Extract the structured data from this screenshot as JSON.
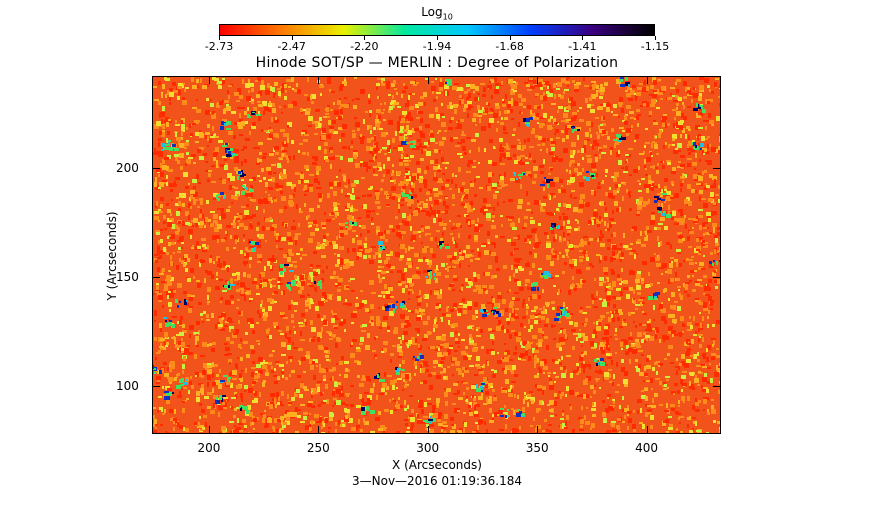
{
  "colorbar": {
    "title": "Log",
    "title_subscript": "10",
    "tick_labels": [
      "-2.73",
      "-2.47",
      "-2.20",
      "-1.94",
      "-1.68",
      "-1.41",
      "-1.15"
    ],
    "colors": [
      "#ff0000",
      "#ff7a00",
      "#e8f000",
      "#00e8a0",
      "#00c8ff",
      "#0040ff",
      "#3a0080",
      "#000000"
    ]
  },
  "plot": {
    "title": "Hinode SOT/SP — MERLIN : Degree of Polarization",
    "xlabel": "X (Arcseconds)",
    "ylabel": "Y (Arcseconds)",
    "x_ticks": [
      200,
      250,
      300,
      350,
      400
    ],
    "y_ticks": [
      100,
      150,
      200
    ],
    "xlim": [
      174,
      434
    ],
    "ylim": [
      78,
      242
    ],
    "background_color": "#f1531b",
    "speckle_colors": [
      "#ff2a00",
      "#ff8c1a",
      "#ffb020",
      "#f0e030",
      "#c8f040"
    ],
    "patch_colors": [
      "#40e060",
      "#20c0e0",
      "#1030c0",
      "#000060"
    ]
  },
  "footer": {
    "timestamp": "3—Nov—2016 01:19:36.184"
  }
}
